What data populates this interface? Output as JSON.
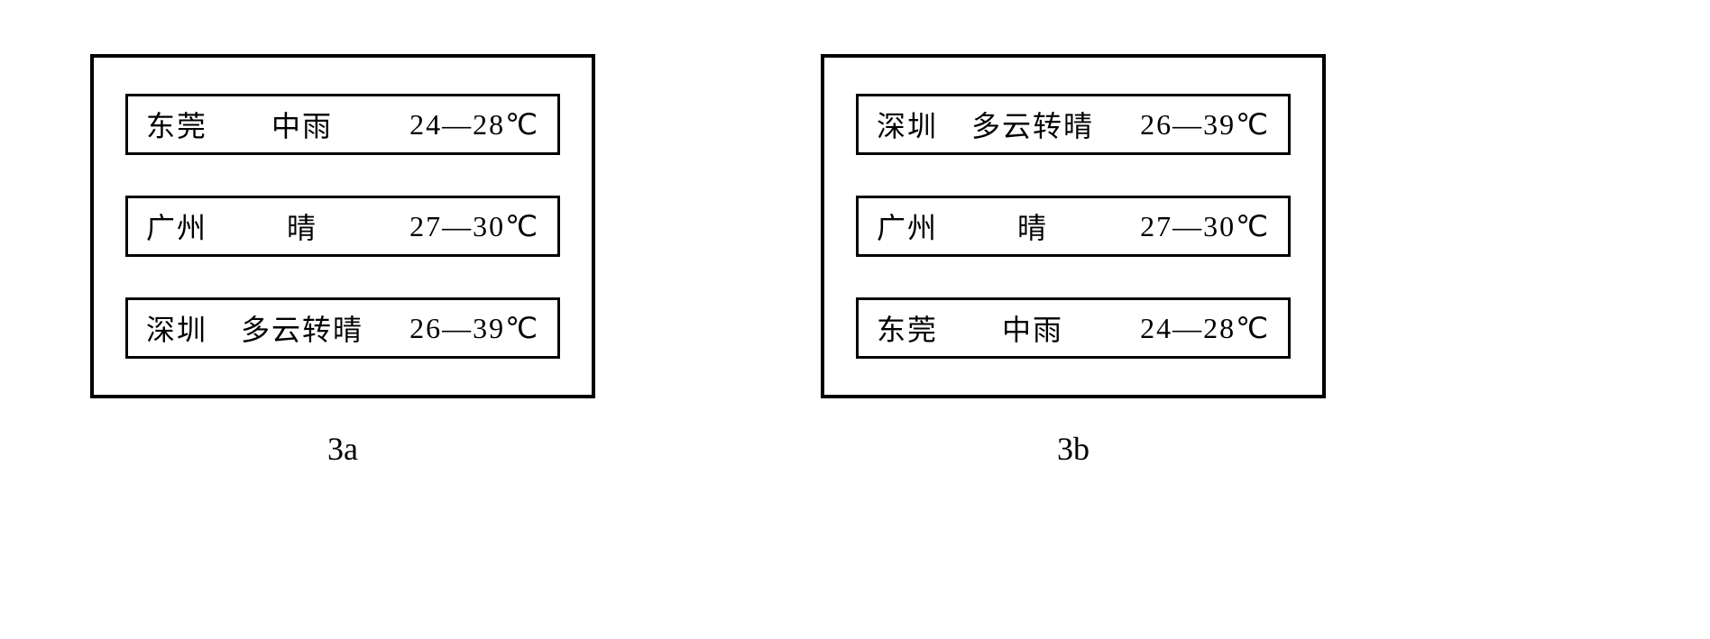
{
  "figure": {
    "type": "infographic",
    "background_color": "#ffffff",
    "border_color": "#000000",
    "text_color": "#000000",
    "panel_border_width": 4,
    "row_border_width": 3,
    "font_family": "SimSun, serif",
    "caption_font_family": "Times New Roman, serif",
    "row_fontsize": 32,
    "caption_fontsize": 36,
    "panels": [
      {
        "caption": "3a",
        "rows": [
          {
            "city": "东莞",
            "weather": "中雨",
            "temp": "24—28℃"
          },
          {
            "city": "广州",
            "weather": "晴",
            "temp": "27—30℃"
          },
          {
            "city": "深圳",
            "weather": "多云转晴",
            "temp": "26—39℃"
          }
        ]
      },
      {
        "caption": "3b",
        "rows": [
          {
            "city": "深圳",
            "weather": "多云转晴",
            "temp": "26—39℃"
          },
          {
            "city": "广州",
            "weather": "晴",
            "temp": "27—30℃"
          },
          {
            "city": "东莞",
            "weather": "中雨",
            "temp": "24—28℃"
          }
        ]
      }
    ]
  }
}
